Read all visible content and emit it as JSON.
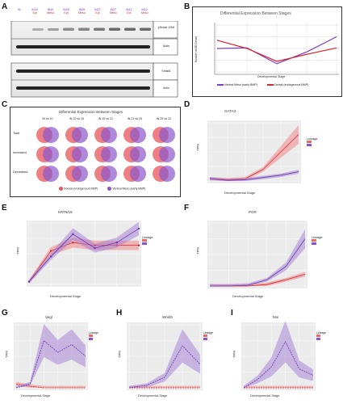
{
  "panel_labels": [
    "A",
    "B",
    "C",
    "D",
    "E",
    "F",
    "G",
    "H",
    "I"
  ],
  "panel_a": {
    "lane_labels": [
      {
        "l1": "iN",
        "l2": ""
      },
      {
        "l1": "iN10",
        "l2": "Epi"
      },
      {
        "l1": "iN10",
        "l2": "Meso"
      },
      {
        "l1": "iN25",
        "l2": "Epi"
      },
      {
        "l1": "iN25",
        "l2": "Meso"
      },
      {
        "l1": "iN27",
        "l2": "Epi"
      },
      {
        "l1": "iN27",
        "l2": "Meso"
      },
      {
        "l1": "iN12",
        "l2": "Epi"
      },
      {
        "l1": "iN12",
        "l2": "Meso"
      }
    ],
    "blot_labels": [
      "pSmad 1/5/8",
      "Actin",
      "Smad1",
      "Actin"
    ]
  },
  "panel_b": {
    "title": "Differential Expression Between Stages",
    "xlabel": "Developmental Stage",
    "ylabel": "Number of DE Genes",
    "legend": [
      {
        "name": "Ventral Meso (early BMP)",
        "color": "#7b3fc4"
      },
      {
        "name": "Dorsal (endogenous BMP)",
        "color": "#d8262b"
      }
    ]
  },
  "panel_c": {
    "title": "Differential Expression Between Stages",
    "columns": [
      "iN vs 10",
      "iN 10 vs 15",
      "iN 15 vs 21",
      "iN 21 vs 25",
      "iN 25 vs 12"
    ],
    "rows": [
      "Total",
      "Increased",
      "Decreased"
    ],
    "legend": [
      {
        "name": "Dorsal (endogenous BMP)",
        "color": "#e8555a"
      },
      {
        "name": "Ventral Meso (early BMP)",
        "color": "#8a55cc"
      }
    ]
  },
  "panel_d": {
    "title": "GATA3",
    "ylabel": "TPM",
    "xlabel": "Developmental Stage",
    "legend_title": "Lineage"
  },
  "panel_e": {
    "title": "KRT8/18",
    "ylabel": "TPM",
    "xlabel": "Developmental Stage",
    "legend_title": "Lineage"
  },
  "panel_f": {
    "title": "PGR",
    "ylabel": "TPM",
    "xlabel": "Developmental Stage",
    "legend_title": "Lineage"
  },
  "panel_g": {
    "title": "Vegl",
    "ylabel": "TPM",
    "xlabel": "Developmental Stage",
    "legend_title": "Lineage"
  },
  "panel_h": {
    "title": "Wnt4b",
    "ylabel": "TPM",
    "xlabel": "Developmental Stage",
    "legend_title": "Lineage"
  },
  "panel_i": {
    "title": "Mix",
    "ylabel": "TPM",
    "xlabel": "Developmental Stage",
    "legend_title": "Lineage"
  },
  "chart_data": [
    {
      "type": "line",
      "categories": [
        "iN vs 10",
        "iN 10 vs 15",
        "iN 15 vs 21",
        "iN 21 vs 25",
        "iN 25 vs 12"
      ],
      "series": [
        {
          "name": "Ventral Meso (early BMP)",
          "values": [
            2000,
            2050,
            700,
            1700,
            3000
          ]
        },
        {
          "name": "Dorsal (endogenous BMP)",
          "values": [
            2700,
            2000,
            900,
            1500,
            2050
          ]
        }
      ],
      "ylim": [
        0,
        4000
      ]
    },
    {
      "type": "line",
      "categories": [
        "1",
        "2",
        "3",
        "4",
        "5",
        "6"
      ],
      "series": [
        {
          "name": "dorsal",
          "values": [
            2,
            1,
            2,
            10,
            25,
            40
          ]
        },
        {
          "name": "ventral",
          "values": [
            2,
            0.5,
            1,
            3,
            5,
            8
          ]
        }
      ],
      "ylim": [
        0,
        50
      ]
    },
    {
      "type": "line",
      "categories": [
        "1",
        "2",
        "3",
        "4",
        "5",
        "6"
      ],
      "series": [
        {
          "name": "dorsal",
          "values": [
            5,
            60,
            75,
            70,
            70,
            70
          ]
        },
        {
          "name": "ventral",
          "values": [
            5,
            50,
            90,
            65,
            75,
            100
          ]
        }
      ],
      "ylim": [
        0,
        110
      ]
    },
    {
      "type": "line",
      "categories": [
        "1",
        "2",
        "3",
        "4",
        "5",
        "6"
      ],
      "series": [
        {
          "name": "dorsal",
          "values": [
            0,
            0,
            0,
            2,
            8,
            15
          ]
        },
        {
          "name": "ventral",
          "values": [
            0,
            0,
            1,
            8,
            25,
            60
          ]
        }
      ],
      "ylim": [
        0,
        80
      ]
    },
    {
      "type": "line",
      "categories": [
        "1",
        "2",
        "3",
        "4",
        "5",
        "6"
      ],
      "series": [
        {
          "name": "dorsal",
          "values": [
            5,
            2,
            0,
            0,
            0,
            0
          ]
        },
        {
          "name": "ventral",
          "values": [
            0,
            5,
            60,
            45,
            55,
            40
          ]
        }
      ],
      "ylim": [
        0,
        80
      ]
    },
    {
      "type": "line",
      "categories": [
        "1",
        "2",
        "3",
        "4",
        "5"
      ],
      "series": [
        {
          "name": "dorsal",
          "values": [
            0,
            0,
            0,
            0,
            0
          ]
        },
        {
          "name": "ventral",
          "values": [
            0,
            5,
            20,
            80,
            45
          ]
        }
      ],
      "ylim": [
        0,
        120
      ]
    },
    {
      "type": "line",
      "categories": [
        "1",
        "2",
        "3",
        "4",
        "5",
        "6"
      ],
      "series": [
        {
          "name": "dorsal",
          "values": [
            0,
            0,
            0,
            0,
            0,
            0
          ]
        },
        {
          "name": "ventral",
          "values": [
            0,
            20,
            50,
            110,
            45,
            30
          ]
        }
      ],
      "ylim": [
        0,
        150
      ]
    }
  ]
}
